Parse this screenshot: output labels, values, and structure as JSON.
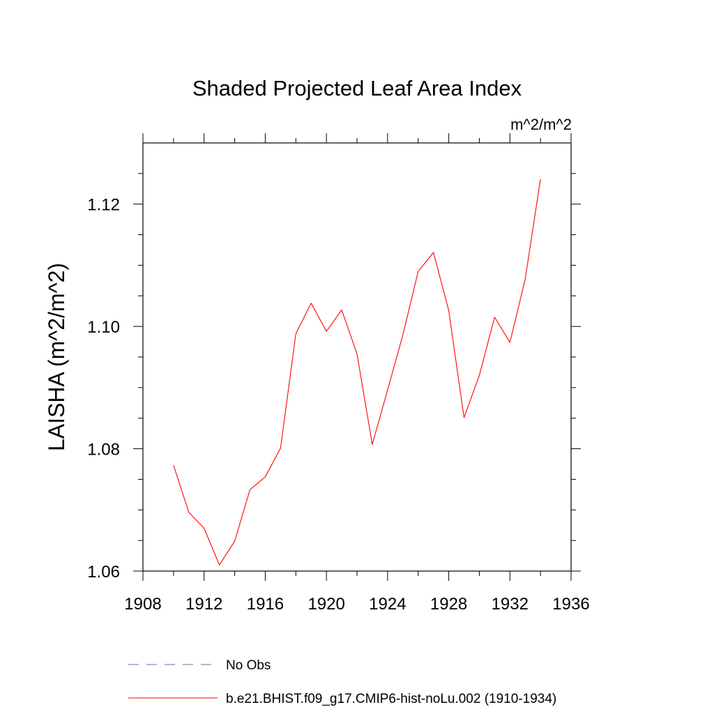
{
  "chart_data": {
    "type": "line",
    "title": "Shaded Projected Leaf Area Index",
    "units_label": "m^2/m^2",
    "ylabel": "LAISHA  (m^2/m^2)",
    "xlabel": "",
    "xlim": [
      1908,
      1936
    ],
    "ylim": [
      1.06,
      1.13
    ],
    "x_ticks": [
      1908,
      1912,
      1916,
      1920,
      1924,
      1928,
      1932,
      1936
    ],
    "x_tick_labels": [
      "1908",
      "1912",
      "1916",
      "1920",
      "1924",
      "1928",
      "1932",
      "1936"
    ],
    "y_ticks": [
      1.06,
      1.08,
      1.1,
      1.12
    ],
    "y_tick_labels": [
      "1.06",
      "1.08",
      "1.10",
      "1.12"
    ],
    "grid": false,
    "legend_position": "bottom",
    "series": [
      {
        "name": "b.e21.BHIST.f09_g17.CMIP6-hist-noLu.002 (1910-1934)",
        "color": "#ff0000",
        "dash": "solid",
        "x": [
          1910,
          1911,
          1912,
          1913,
          1914,
          1915,
          1916,
          1917,
          1918,
          1919,
          1920,
          1921,
          1922,
          1923,
          1924,
          1925,
          1926,
          1927,
          1928,
          1929,
          1930,
          1931,
          1932,
          1933,
          1934
        ],
        "y": [
          1.0773,
          1.0696,
          1.067,
          1.061,
          1.0649,
          1.0733,
          1.0754,
          1.0801,
          1.0988,
          1.1038,
          1.0992,
          1.1027,
          1.0955,
          1.0807,
          1.0896,
          1.0986,
          1.109,
          1.1121,
          1.1026,
          1.0851,
          1.092,
          1.1015,
          1.0974,
          1.1077,
          1.1241
        ]
      }
    ],
    "legend": [
      {
        "label": "No Obs",
        "color": "#6a6aa8",
        "dash": "dashed"
      },
      {
        "label": "b.e21.BHIST.f09_g17.CMIP6-hist-noLu.002 (1910-1934)",
        "color": "#ff0000",
        "dash": "solid"
      }
    ]
  }
}
